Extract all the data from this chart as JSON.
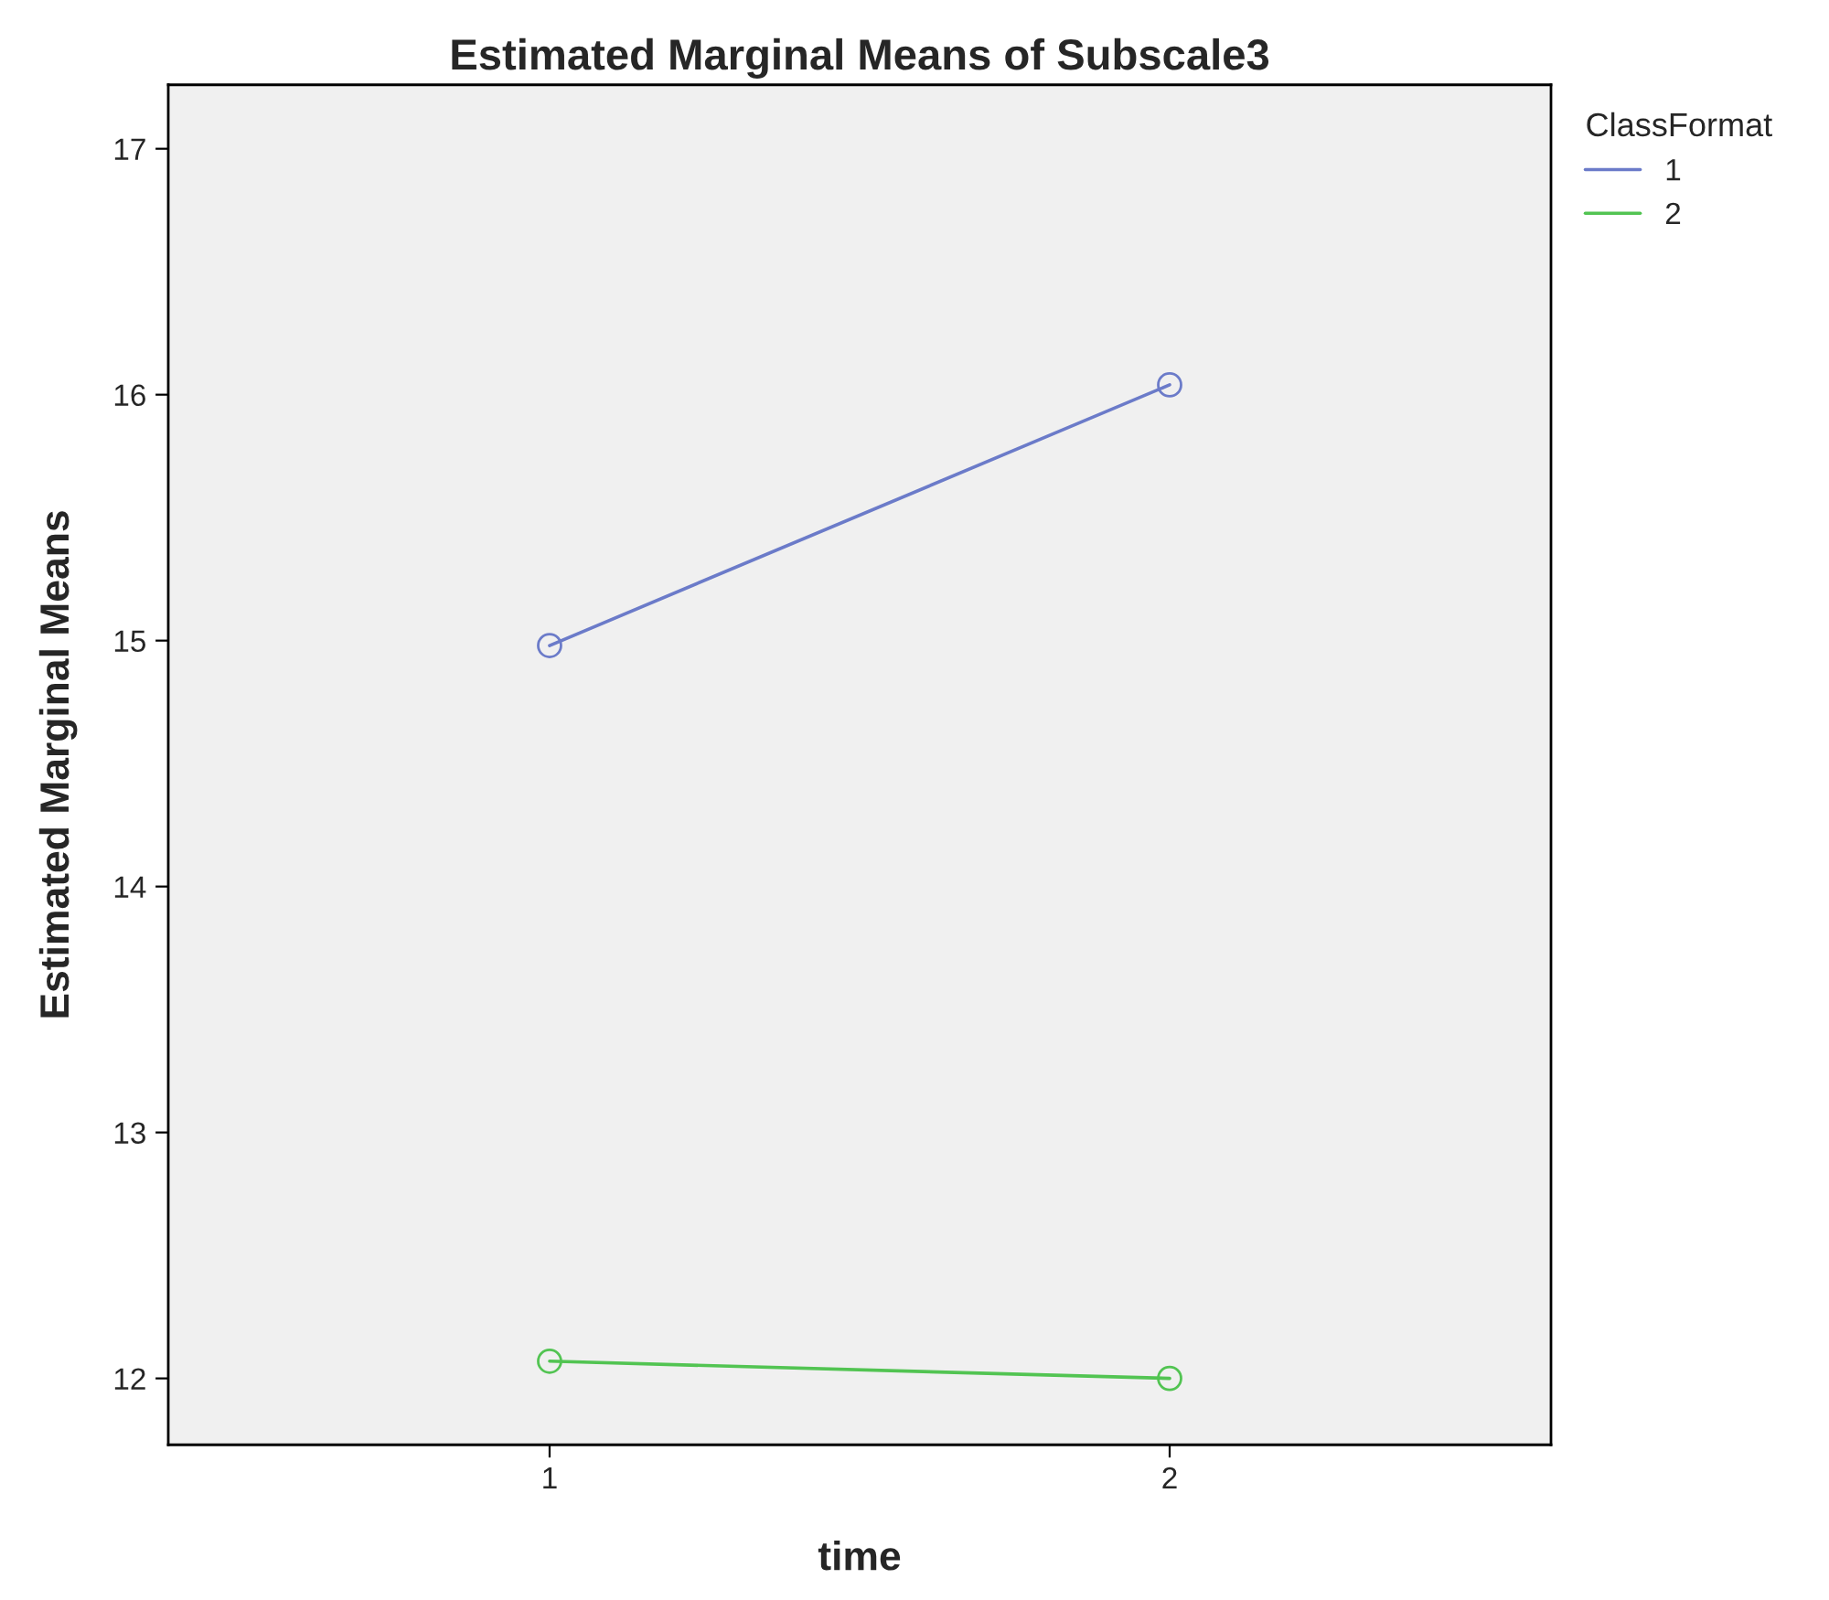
{
  "chart_data": {
    "type": "line",
    "title": "Estimated Marginal Means of Subscale3",
    "xlabel": "time",
    "ylabel": "Estimated Marginal Means",
    "legend_title": "ClassFormat",
    "categories": [
      "1",
      "2"
    ],
    "series": [
      {
        "name": "1",
        "color": "#6b7bc9",
        "values": [
          14.98,
          16.04
        ]
      },
      {
        "name": "2",
        "color": "#52c452",
        "values": [
          12.07,
          12.0
        ]
      }
    ],
    "ylim": [
      11.73,
      17.26
    ],
    "yticks": [
      12,
      13,
      14,
      15,
      16,
      17
    ],
    "marker": "circle",
    "legend": "top right",
    "grid": false
  }
}
